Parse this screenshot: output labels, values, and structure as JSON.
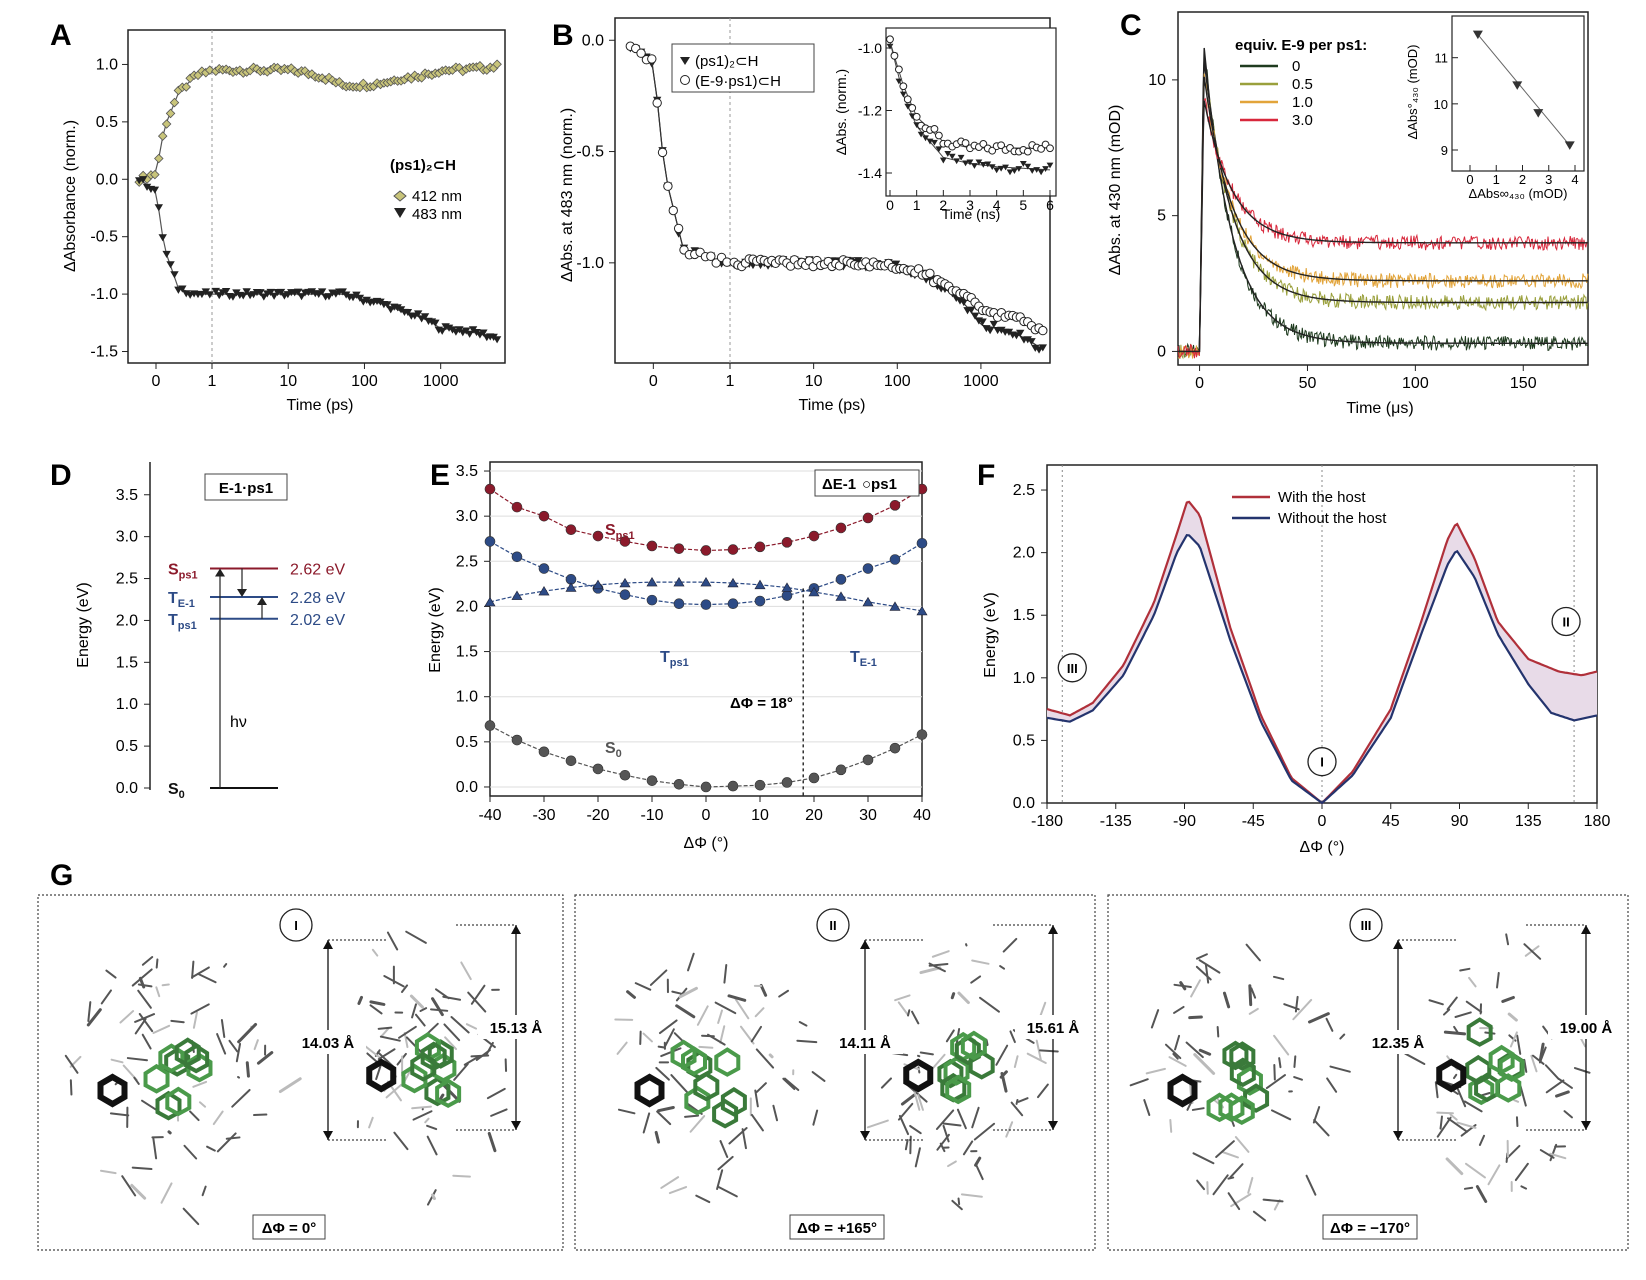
{
  "panel_labels": [
    "A",
    "B",
    "C",
    "D",
    "E",
    "F",
    "G"
  ],
  "chart_data": [
    {
      "id": "A",
      "type": "line",
      "xlabel": "Time (ps)",
      "ylabel": "ΔAbsorbance (norm.)",
      "xticks": [
        "0",
        "1",
        "10",
        "100",
        "1000"
      ],
      "yticks": [
        "1.0",
        "0.5",
        "0.0",
        "-0.5",
        "-1.0",
        "-1.5"
      ],
      "ylim": [
        -1.6,
        1.3
      ],
      "legend_title": "(ps1)₂⊂H",
      "series": [
        {
          "name": "412 nm",
          "marker": "diamond",
          "color": "#c8c47a",
          "points": [
            [
              -0.3,
              0.0
            ],
            [
              0.0,
              0.05
            ],
            [
              0.15,
              0.45
            ],
            [
              0.4,
              0.75
            ],
            [
              0.7,
              0.9
            ],
            [
              1,
              0.95
            ],
            [
              10,
              0.95
            ],
            [
              50,
              0.82
            ],
            [
              100,
              0.82
            ],
            [
              300,
              0.88
            ],
            [
              1000,
              0.95
            ],
            [
              5000,
              0.98
            ]
          ]
        },
        {
          "name": "483 nm",
          "marker": "triangle-down",
          "color": "#222222",
          "points": [
            [
              -0.3,
              0.0
            ],
            [
              0.0,
              -0.1
            ],
            [
              0.15,
              -0.6
            ],
            [
              0.4,
              -0.95
            ],
            [
              0.7,
              -1.0
            ],
            [
              1,
              -1.0
            ],
            [
              10,
              -1.0
            ],
            [
              50,
              -1.0
            ],
            [
              100,
              -1.05
            ],
            [
              300,
              -1.15
            ],
            [
              1000,
              -1.3
            ],
            [
              5000,
              -1.38
            ]
          ]
        }
      ]
    },
    {
      "id": "B",
      "type": "line",
      "xlabel": "Time (ps)",
      "ylabel": "ΔAbs. at 483 nm (norm.)",
      "xticks": [
        "0",
        "1",
        "10",
        "100",
        "1000"
      ],
      "yticks": [
        "0.0",
        "-0.5",
        "-1.0"
      ],
      "ylim": [
        -1.45,
        0.1
      ],
      "series": [
        {
          "name": "(ps1)₂⊂H",
          "marker": "triangle-down",
          "color": "#222222",
          "points": [
            [
              -0.3,
              -0.02
            ],
            [
              0.0,
              -0.1
            ],
            [
              0.15,
              -0.6
            ],
            [
              0.4,
              -0.95
            ],
            [
              1,
              -1.0
            ],
            [
              10,
              -1.0
            ],
            [
              100,
              -1.02
            ],
            [
              300,
              -1.1
            ],
            [
              1000,
              -1.28
            ],
            [
              5000,
              -1.38
            ]
          ]
        },
        {
          "name": "(E-9·ps1)⊂H",
          "marker": "circle-open",
          "color": "#222222",
          "points": [
            [
              -0.3,
              -0.02
            ],
            [
              0.0,
              -0.1
            ],
            [
              0.15,
              -0.6
            ],
            [
              0.4,
              -0.95
            ],
            [
              1,
              -1.0
            ],
            [
              10,
              -1.0
            ],
            [
              100,
              -1.02
            ],
            [
              300,
              -1.08
            ],
            [
              1000,
              -1.22
            ],
            [
              5000,
              -1.3
            ]
          ]
        }
      ],
      "inset": {
        "xlabel": "Time (ns)",
        "ylabel": "ΔAbs. (norm.)",
        "xticks": [
          "0",
          "1",
          "2",
          "3",
          "4",
          "5",
          "6"
        ],
        "yticks": [
          "-1.0",
          "-1.2",
          "-1.4"
        ],
        "series": [
          {
            "name": "(ps1)₂⊂H",
            "points": [
              [
                0,
                -0.98
              ],
              [
                0.5,
                -1.15
              ],
              [
                1,
                -1.25
              ],
              [
                2,
                -1.35
              ],
              [
                3,
                -1.37
              ],
              [
                4,
                -1.38
              ],
              [
                6,
                -1.39
              ]
            ]
          },
          {
            "name": "(E-9·ps1)⊂H",
            "points": [
              [
                0,
                -0.98
              ],
              [
                0.5,
                -1.12
              ],
              [
                1,
                -1.22
              ],
              [
                2,
                -1.3
              ],
              [
                3,
                -1.32
              ],
              [
                4,
                -1.32
              ],
              [
                6,
                -1.32
              ]
            ]
          }
        ]
      }
    },
    {
      "id": "C",
      "type": "line",
      "xlabel": "Time (μs)",
      "ylabel": "ΔAbs. at 430 nm (mOD)",
      "xticks": [
        "0",
        "50",
        "100",
        "150"
      ],
      "yticks": [
        "10",
        "5",
        "0"
      ],
      "xlim": [
        -10,
        180
      ],
      "ylim": [
        -0.5,
        12.5
      ],
      "legend_title": "equiv. E-9 per ps1:",
      "series": [
        {
          "name": "0",
          "color": "#1f3b1f",
          "plateau": 0.3,
          "peak": 11.3
        },
        {
          "name": "0.5",
          "color": "#9aa03c",
          "plateau": 1.8,
          "peak": 10.8
        },
        {
          "name": "1.0",
          "color": "#e2a43a",
          "plateau": 2.6,
          "peak": 10.2
        },
        {
          "name": "3.0",
          "color": "#d8283c",
          "plateau": 4.0,
          "peak": 9.3
        }
      ],
      "inset": {
        "type": "scatter",
        "xlabel": "ΔAbs∞₄₃₀ (mOD)",
        "ylabel": "ΔAbs°₄₃₀ (mOD)",
        "xticks": [
          "0",
          "1",
          "2",
          "3",
          "4"
        ],
        "yticks": [
          "11",
          "10",
          "9"
        ],
        "points": [
          [
            0.3,
            11.5
          ],
          [
            1.8,
            10.4
          ],
          [
            2.6,
            9.8
          ],
          [
            3.8,
            9.1
          ]
        ]
      }
    },
    {
      "id": "D",
      "type": "diagram",
      "ylabel": "Energy (eV)",
      "yticks": [
        "3.5",
        "3.0",
        "2.5",
        "2.0",
        "1.5",
        "1.0",
        "0.5",
        "0.0"
      ],
      "title": "E-1·ps1",
      "levels": [
        {
          "label": "S",
          "sub": "ps1",
          "value": 2.62,
          "value_label": "2.62 eV",
          "color": "#8b1a2b"
        },
        {
          "label": "T",
          "sub": "E-1",
          "value": 2.28,
          "value_label": "2.28 eV",
          "color": "#2d4b86"
        },
        {
          "label": "T",
          "sub": "ps1",
          "value": 2.02,
          "value_label": "2.02 eV",
          "color": "#2d4b86"
        },
        {
          "label": "S",
          "sub": "0",
          "value": 0.0,
          "value_label": "",
          "color": "#111111"
        }
      ],
      "excitation": "hν"
    },
    {
      "id": "E",
      "type": "scatter",
      "xlabel": "ΔΦ (°)",
      "ylabel": "Energy (eV)",
      "xticks": [
        "-40",
        "-30",
        "-20",
        "-10",
        "0",
        "10",
        "20",
        "30",
        "40"
      ],
      "yticks": [
        "3.5",
        "3.0",
        "2.5",
        "2.0",
        "1.5",
        "1.0",
        "0.5",
        "0.0"
      ],
      "xlim": [
        -40,
        40
      ],
      "ylim": [
        -0.1,
        3.6
      ],
      "legend": [
        "ΔE-1",
        "○ps1"
      ],
      "annotation": "ΔΦ = 18°",
      "x": [
        -40,
        -35,
        -30,
        -25,
        -20,
        -15,
        -10,
        -5,
        0,
        5,
        10,
        15,
        20,
        25,
        30,
        35,
        40
      ],
      "series": [
        {
          "name": "S",
          "sub": "ps1",
          "marker": "circle",
          "color": "#8b1a2b",
          "values": [
            3.3,
            3.1,
            3.0,
            2.85,
            2.78,
            2.72,
            2.67,
            2.64,
            2.62,
            2.63,
            2.66,
            2.71,
            2.78,
            2.87,
            2.98,
            3.12,
            3.3
          ]
        },
        {
          "name": "T",
          "sub": "ps1",
          "marker": "circle",
          "color": "#2d4b86",
          "values": [
            2.72,
            2.55,
            2.42,
            2.3,
            2.2,
            2.13,
            2.07,
            2.03,
            2.02,
            2.03,
            2.06,
            2.12,
            2.2,
            2.3,
            2.42,
            2.52,
            2.7
          ]
        },
        {
          "name": "T",
          "sub": "E-1",
          "marker": "triangle",
          "color": "#2d4b86",
          "values": [
            2.05,
            2.12,
            2.17,
            2.21,
            2.24,
            2.26,
            2.27,
            2.27,
            2.27,
            2.26,
            2.24,
            2.21,
            2.16,
            2.11,
            2.05,
            2.0,
            1.95
          ]
        },
        {
          "name": "S",
          "sub": "0",
          "marker": "circle",
          "color": "#555555",
          "values": [
            0.68,
            0.52,
            0.39,
            0.29,
            0.2,
            0.13,
            0.07,
            0.03,
            0.0,
            0.01,
            0.02,
            0.05,
            0.1,
            0.19,
            0.3,
            0.43,
            0.58
          ]
        }
      ]
    },
    {
      "id": "F",
      "type": "line",
      "xlabel": "ΔΦ (°)",
      "ylabel": "Energy (eV)",
      "xticks": [
        "-180",
        "-135",
        "-90",
        "-45",
        "0",
        "45",
        "90",
        "135",
        "180"
      ],
      "yticks": [
        "2.5",
        "2.0",
        "1.5",
        "1.0",
        "0.5",
        "0.0"
      ],
      "xlim": [
        -180,
        180
      ],
      "ylim": [
        0,
        2.7
      ],
      "markers": [
        "III",
        "I",
        "II"
      ],
      "series": [
        {
          "name": "With the host",
          "color": "#b0303a",
          "points": [
            [
              -180,
              0.75
            ],
            [
              -165,
              0.7
            ],
            [
              -150,
              0.8
            ],
            [
              -130,
              1.1
            ],
            [
              -110,
              1.6
            ],
            [
              -95,
              2.15
            ],
            [
              -88,
              2.42
            ],
            [
              -80,
              2.3
            ],
            [
              -60,
              1.4
            ],
            [
              -40,
              0.7
            ],
            [
              -20,
              0.2
            ],
            [
              0,
              0.0
            ],
            [
              20,
              0.25
            ],
            [
              45,
              0.75
            ],
            [
              65,
              1.45
            ],
            [
              82,
              2.1
            ],
            [
              88,
              2.24
            ],
            [
              100,
              1.95
            ],
            [
              115,
              1.45
            ],
            [
              135,
              1.15
            ],
            [
              155,
              1.05
            ],
            [
              170,
              1.02
            ],
            [
              180,
              1.05
            ]
          ]
        },
        {
          "name": "Without the host",
          "color": "#24346e",
          "points": [
            [
              -180,
              0.68
            ],
            [
              -165,
              0.65
            ],
            [
              -150,
              0.74
            ],
            [
              -130,
              1.02
            ],
            [
              -110,
              1.5
            ],
            [
              -95,
              2.0
            ],
            [
              -88,
              2.15
            ],
            [
              -80,
              2.05
            ],
            [
              -60,
              1.3
            ],
            [
              -40,
              0.65
            ],
            [
              -20,
              0.18
            ],
            [
              0,
              0.0
            ],
            [
              20,
              0.22
            ],
            [
              45,
              0.68
            ],
            [
              65,
              1.35
            ],
            [
              82,
              1.9
            ],
            [
              88,
              2.02
            ],
            [
              100,
              1.8
            ],
            [
              115,
              1.35
            ],
            [
              135,
              0.95
            ],
            [
              150,
              0.72
            ],
            [
              165,
              0.66
            ],
            [
              180,
              0.7
            ]
          ]
        }
      ]
    }
  ],
  "panel_g": [
    {
      "marker": "I",
      "caption": "ΔΦ = 0°",
      "left_dist": "14.03 Å",
      "right_dist": "15.13 Å"
    },
    {
      "marker": "II",
      "caption": "ΔΦ = +165°",
      "left_dist": "14.11 Å",
      "right_dist": "15.61 Å"
    },
    {
      "marker": "III",
      "caption": "ΔΦ = −170°",
      "left_dist": "12.35 Å",
      "right_dist": "19.00 Å"
    }
  ]
}
